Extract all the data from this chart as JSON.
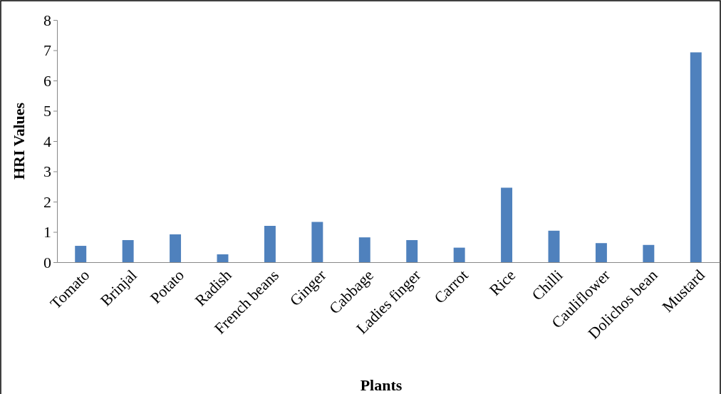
{
  "chart_data": {
    "type": "bar",
    "xlabel": "Plants",
    "ylabel": "HRI Values",
    "categories": [
      "Tomato",
      "Brinjal",
      "Potato",
      "Radish",
      "French beans",
      "Ginger",
      "Cabbage",
      "Ladies finger",
      "Carrot",
      "Rice",
      "Chilli",
      "Cauliflower",
      "Dolichos bean",
      "Mustard"
    ],
    "values": [
      0.54,
      0.73,
      0.92,
      0.26,
      1.2,
      1.33,
      0.82,
      0.73,
      0.48,
      2.46,
      1.04,
      0.63,
      0.57,
      6.93
    ],
    "color": "#4f81bd",
    "ylim": [
      0,
      8
    ],
    "yticks": [
      0,
      1,
      2,
      3,
      4,
      5,
      6,
      7,
      8
    ],
    "grid": false
  }
}
